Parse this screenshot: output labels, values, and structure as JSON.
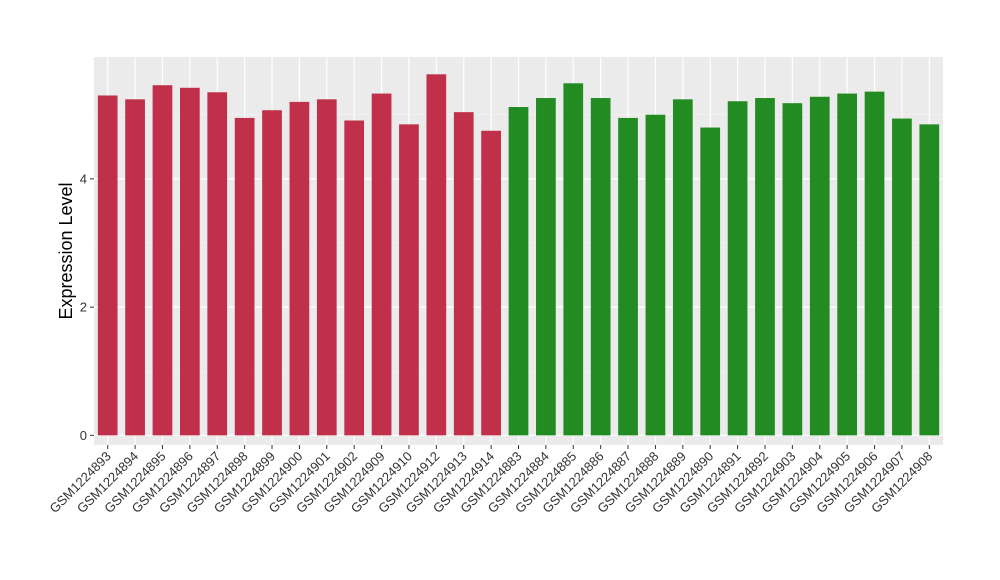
{
  "chart_data": {
    "type": "bar",
    "xlabel": "",
    "ylabel": "Expression Level",
    "ylim": [
      -0.15,
      5.9
    ],
    "yticks": [
      0,
      2,
      4
    ],
    "grid": true,
    "legend": "none",
    "categories": [
      "GSM1224893",
      "GSM1224894",
      "GSM1224895",
      "GSM1224896",
      "GSM1224897",
      "GSM1224898",
      "GSM1224899",
      "GSM1224900",
      "GSM1224901",
      "GSM1224902",
      "GSM1224909",
      "GSM1224910",
      "GSM1224912",
      "GSM1224913",
      "GSM1224914",
      "GSM1224883",
      "GSM1224884",
      "GSM1224885",
      "GSM1224886",
      "GSM1224887",
      "GSM1224888",
      "GSM1224889",
      "GSM1224890",
      "GSM1224891",
      "GSM1224892",
      "GSM1224903",
      "GSM1224904",
      "GSM1224905",
      "GSM1224906",
      "GSM1224907",
      "GSM1224908"
    ],
    "values": [
      5.3,
      5.24,
      5.46,
      5.42,
      5.35,
      4.95,
      5.07,
      5.2,
      5.24,
      4.91,
      5.33,
      4.85,
      5.63,
      5.04,
      4.75,
      5.12,
      5.26,
      5.49,
      5.26,
      4.95,
      5.0,
      5.24,
      4.8,
      5.21,
      5.26,
      5.18,
      5.28,
      5.33,
      5.36,
      4.94,
      4.85
    ],
    "groups": [
      "A",
      "A",
      "A",
      "A",
      "A",
      "A",
      "A",
      "A",
      "A",
      "A",
      "A",
      "A",
      "A",
      "A",
      "A",
      "B",
      "B",
      "B",
      "B",
      "B",
      "B",
      "B",
      "B",
      "B",
      "B",
      "B",
      "B",
      "B",
      "B",
      "B",
      "B"
    ],
    "colors": {
      "A": "#c0304a",
      "B": "#228b22"
    }
  }
}
